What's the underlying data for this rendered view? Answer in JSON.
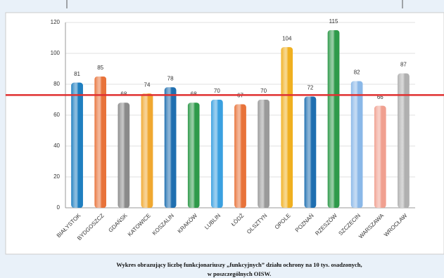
{
  "chart_data": {
    "type": "bar",
    "caption": [
      "Wykres obrazujący liczbę funkcjonariuszy „funkcyjnych” działu ochrony na 10 tys. osadzonych,",
      "w poszczególnych OISW."
    ],
    "categories": [
      "BIAŁYSTOK",
      "BYDGOSZCZ",
      "GDAŃSK",
      "KATOWICE",
      "KOSZALIN",
      "KRAKÓW",
      "LUBLIN",
      "ŁÓDŹ",
      "OLSZTYN",
      "OPOLE",
      "POZNAŃ",
      "RZESZÓW",
      "SZCZECIN",
      "WARSZAWA",
      "WROCŁAW"
    ],
    "values": [
      81,
      85,
      68,
      74,
      78,
      68,
      70,
      67,
      70,
      104,
      72,
      115,
      82,
      66,
      87
    ],
    "colors": [
      "#1f7fc0",
      "#e8733a",
      "#8a8a8a",
      "#f0a830",
      "#1f6fb0",
      "#2e9a4a",
      "#3aa0e0",
      "#e8733a",
      "#9a9a9a",
      "#f0b020",
      "#1f6fb0",
      "#2e9a4a",
      "#8ab8e8",
      "#f0a090",
      "#b0b0b0"
    ],
    "ylim": [
      0,
      120
    ],
    "yticks": [
      0,
      20,
      40,
      60,
      80,
      100,
      120
    ],
    "grid": true,
    "reference_line": 73,
    "reference_color": "#e03030"
  }
}
